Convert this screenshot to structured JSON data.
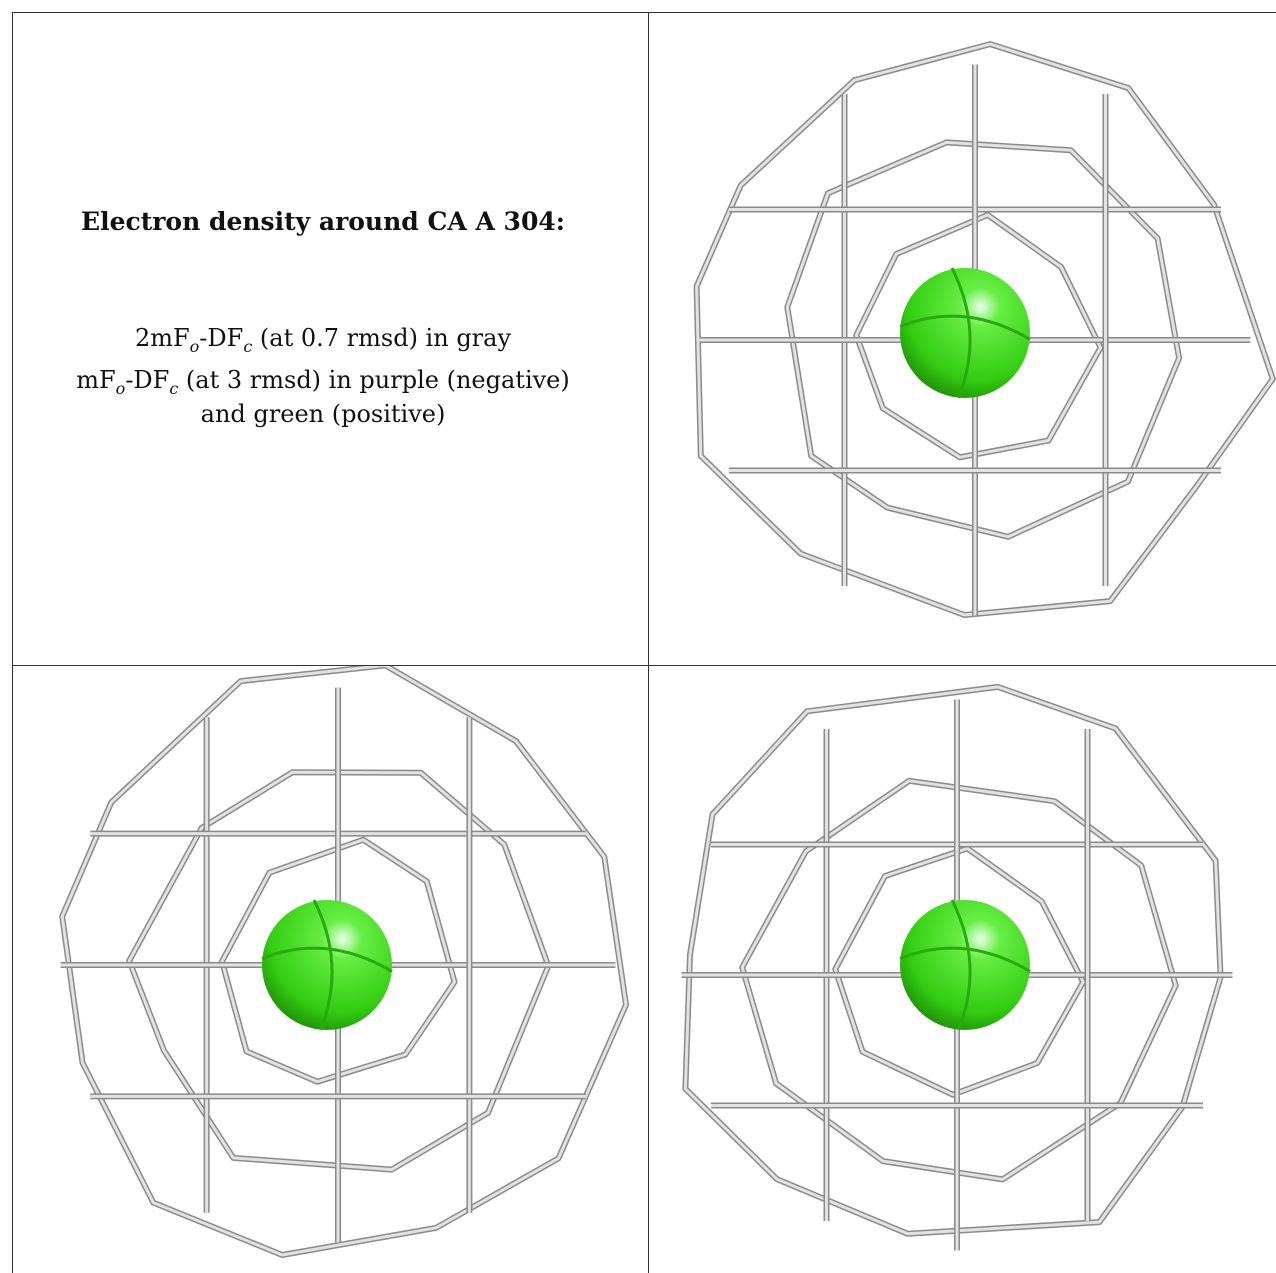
{
  "title": "Electron density around CA A 304:",
  "legend": [
    {
      "parts": [
        "2mF",
        "o",
        "-DF",
        "c",
        " (at 0.7 rmsd) in gray"
      ]
    },
    {
      "parts": [
        "mF",
        "o",
        "-DF",
        "c",
        " (at 3 rmsd) in purple (negative)"
      ]
    },
    {
      "parts": [
        "and green (positive)"
      ]
    }
  ]
}
